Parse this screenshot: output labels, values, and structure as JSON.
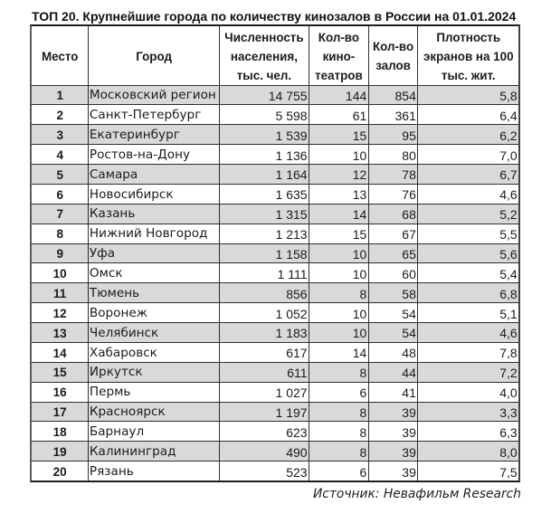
{
  "title": "ТОП 20. Крупнейшие города по количеству кинозалов в России на 01.01.2024",
  "source_note": "Источник: Невафильм Research",
  "colors": {
    "row_alt_background": "#d9d9d9",
    "row_background": "#ffffff",
    "grid_line": "#000000",
    "text": "#1b1b1b"
  },
  "chart_data": {
    "type": "table",
    "title": "ТОП 20. Крупнейшие города по количеству кинозалов в России на 01.01.2024",
    "columns": [
      "Место",
      "Город",
      "Численность населения, тыс. чел.",
      "Кол-во кинотеатров",
      "Кол-во залов",
      "Плотность экранов на 100 тыс. жит."
    ],
    "rows": [
      [
        "1",
        "Московский регион",
        "14 755",
        "144",
        "854",
        "5,8"
      ],
      [
        "2",
        "Санкт-Петербург",
        "5 598",
        "61",
        "361",
        "6,4"
      ],
      [
        "3",
        "Екатеринбург",
        "1 539",
        "15",
        "95",
        "6,2"
      ],
      [
        "4",
        "Ростов-на-Дону",
        "1 136",
        "10",
        "80",
        "7,0"
      ],
      [
        "5",
        "Самара",
        "1 164",
        "12",
        "78",
        "6,7"
      ],
      [
        "6",
        "Новосибирск",
        "1 635",
        "13",
        "76",
        "4,6"
      ],
      [
        "7",
        "Казань",
        "1 315",
        "14",
        "68",
        "5,2"
      ],
      [
        "8",
        "Нижний Новгород",
        "1 213",
        "15",
        "67",
        "5,5"
      ],
      [
        "9",
        "Уфа",
        "1 158",
        "10",
        "65",
        "5,6"
      ],
      [
        "10",
        "Омск",
        "1 111",
        "10",
        "60",
        "5,4"
      ],
      [
        "11",
        "Тюмень",
        "856",
        "8",
        "58",
        "6,8"
      ],
      [
        "12",
        "Воронеж",
        "1 052",
        "10",
        "54",
        "5,1"
      ],
      [
        "13",
        "Челябинск",
        "1 183",
        "10",
        "54",
        "4,6"
      ],
      [
        "14",
        "Хабаровск",
        "617",
        "14",
        "48",
        "7,8"
      ],
      [
        "15",
        "Иркутск",
        "611",
        "8",
        "44",
        "7,2"
      ],
      [
        "16",
        "Пермь",
        "1 027",
        "6",
        "41",
        "4,0"
      ],
      [
        "17",
        "Красноярск",
        "1 197",
        "8",
        "39",
        "3,3"
      ],
      [
        "18",
        "Барнаул",
        "623",
        "8",
        "39",
        "6,3"
      ],
      [
        "19",
        "Калининград",
        "490",
        "8",
        "39",
        "8,0"
      ],
      [
        "20",
        "Рязань",
        "523",
        "6",
        "39",
        "7,5"
      ]
    ]
  },
  "table": {
    "header_lines": [
      "Место",
      "Город",
      "Численность\nнаселения,\nтыс. чел.",
      "Кол-во\nкино-\nтеатров",
      "Кол-во\nзалов",
      "Плотность\nэкранов на 100\nтыс. жит."
    ]
  }
}
